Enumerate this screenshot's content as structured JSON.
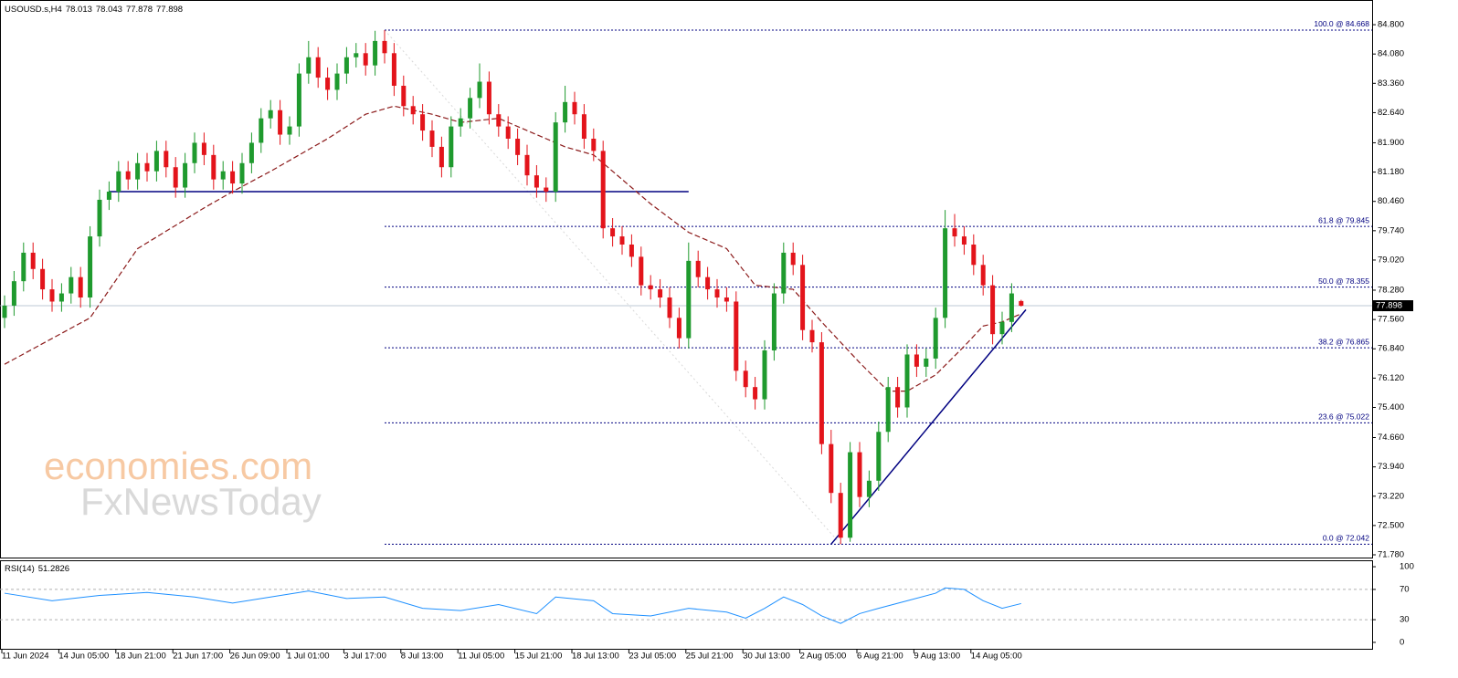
{
  "chart_data": {
    "type": "candlestick",
    "symbol": "USOUSD.s,H4",
    "up_color": "#1f9a2e",
    "down_color": "#e3141b",
    "categories": [
      "11 Jun 2024",
      null,
      null,
      null,
      null,
      null,
      "14 Jun 05:00",
      null,
      null,
      null,
      null,
      null,
      "18 Jun 21:00",
      null,
      null,
      null,
      null,
      null,
      "21 Jun 17:00",
      null,
      null,
      null,
      null,
      null,
      "26 Jun 09:00",
      null,
      null,
      null,
      null,
      null,
      "1 Jul 01:00",
      null,
      null,
      null,
      null,
      null,
      "3 Jul 17:00",
      null,
      null,
      null,
      null,
      null,
      "8 Jul 13:00",
      null,
      null,
      null,
      null,
      null,
      "11 Jul 05:00",
      null,
      null,
      null,
      null,
      null,
      "15 Jul 21:00",
      null,
      null,
      null,
      null,
      null,
      "18 Jul 13:00",
      null,
      null,
      null,
      null,
      null,
      "23 Jul 05:00",
      null,
      null,
      null,
      null,
      null,
      "25 Jul 21:00",
      null,
      null,
      null,
      null,
      null,
      "30 Jul 13:00",
      null,
      null,
      null,
      null,
      null,
      "2 Aug 05:00",
      null,
      null,
      null,
      null,
      null,
      "6 Aug 21:00",
      null,
      null,
      null,
      null,
      null,
      "9 Aug 13:00",
      null,
      null,
      null,
      null,
      null,
      "14 Aug 05:00",
      null,
      null,
      null,
      null,
      null
    ],
    "candles": [
      [
        77.6,
        78.15,
        77.35,
        77.9
      ],
      [
        77.9,
        78.75,
        77.65,
        78.5
      ],
      [
        78.5,
        79.45,
        78.25,
        79.2
      ],
      [
        79.2,
        79.45,
        78.55,
        78.8
      ],
      [
        78.8,
        79.05,
        78.05,
        78.3
      ],
      [
        78.3,
        78.55,
        77.75,
        78.0
      ],
      [
        78.0,
        78.45,
        77.75,
        78.2
      ],
      [
        78.2,
        78.85,
        77.95,
        78.6
      ],
      [
        78.6,
        78.85,
        77.85,
        78.1
      ],
      [
        78.1,
        79.85,
        77.85,
        79.6
      ],
      [
        79.6,
        80.75,
        79.35,
        80.5
      ],
      [
        80.5,
        80.95,
        80.25,
        80.7
      ],
      [
        80.7,
        81.45,
        80.45,
        81.2
      ],
      [
        81.2,
        81.45,
        80.75,
        81.0
      ],
      [
        81.0,
        81.65,
        80.75,
        81.4
      ],
      [
        81.4,
        81.65,
        80.95,
        81.2
      ],
      [
        81.2,
        81.95,
        80.95,
        81.7
      ],
      [
        81.7,
        81.95,
        81.05,
        81.3
      ],
      [
        81.3,
        81.55,
        80.55,
        80.8
      ],
      [
        80.8,
        81.65,
        80.55,
        81.4
      ],
      [
        81.4,
        82.15,
        81.15,
        81.9
      ],
      [
        81.9,
        82.15,
        81.35,
        81.6
      ],
      [
        81.6,
        81.85,
        80.75,
        81.0
      ],
      [
        81.0,
        81.45,
        80.75,
        81.2
      ],
      [
        81.2,
        81.45,
        80.65,
        80.9
      ],
      [
        80.9,
        81.65,
        80.65,
        81.4
      ],
      [
        81.4,
        82.15,
        81.15,
        81.9
      ],
      [
        81.9,
        82.75,
        81.65,
        82.5
      ],
      [
        82.5,
        82.95,
        82.25,
        82.7
      ],
      [
        82.7,
        82.95,
        81.85,
        82.1
      ],
      [
        82.1,
        82.55,
        81.85,
        82.3
      ],
      [
        82.3,
        83.85,
        82.05,
        83.6
      ],
      [
        83.6,
        84.4,
        83.35,
        84.0
      ],
      [
        84.0,
        84.25,
        83.25,
        83.5
      ],
      [
        83.5,
        83.75,
        82.95,
        83.2
      ],
      [
        83.2,
        83.85,
        82.95,
        83.6
      ],
      [
        83.6,
        84.25,
        83.35,
        84.0
      ],
      [
        84.0,
        84.35,
        83.75,
        84.1
      ],
      [
        84.1,
        84.35,
        83.55,
        83.8
      ],
      [
        83.8,
        84.65,
        83.55,
        84.4
      ],
      [
        84.4,
        84.668,
        83.85,
        84.1
      ],
      [
        84.1,
        84.35,
        83.05,
        83.3
      ],
      [
        83.3,
        83.55,
        82.55,
        82.8
      ],
      [
        82.8,
        83.05,
        82.35,
        82.6
      ],
      [
        82.6,
        82.85,
        81.95,
        82.2
      ],
      [
        82.2,
        82.45,
        81.55,
        81.8
      ],
      [
        81.8,
        82.05,
        81.05,
        81.3
      ],
      [
        81.3,
        82.55,
        81.05,
        82.3
      ],
      [
        82.3,
        82.75,
        82.05,
        82.5
      ],
      [
        82.5,
        83.25,
        82.25,
        83.0
      ],
      [
        83.0,
        83.85,
        82.75,
        83.4
      ],
      [
        83.4,
        83.65,
        82.35,
        82.6
      ],
      [
        82.6,
        82.85,
        82.05,
        82.3
      ],
      [
        82.3,
        82.55,
        81.75,
        82.0
      ],
      [
        82.0,
        82.25,
        81.35,
        81.6
      ],
      [
        81.6,
        81.85,
        80.85,
        81.1
      ],
      [
        81.1,
        81.35,
        80.55,
        80.8
      ],
      [
        80.8,
        81.05,
        80.45,
        80.7
      ],
      [
        80.7,
        82.65,
        80.45,
        82.4
      ],
      [
        82.4,
        83.3,
        82.15,
        82.9
      ],
      [
        82.9,
        83.15,
        82.35,
        82.6
      ],
      [
        82.6,
        82.85,
        81.75,
        82.0
      ],
      [
        82.0,
        82.25,
        81.45,
        81.7
      ],
      [
        81.7,
        81.95,
        79.55,
        79.8
      ],
      [
        79.8,
        80.05,
        79.35,
        79.6
      ],
      [
        79.6,
        79.85,
        79.15,
        79.4
      ],
      [
        79.4,
        79.65,
        78.85,
        79.1
      ],
      [
        79.1,
        79.35,
        78.15,
        78.4
      ],
      [
        78.4,
        78.65,
        78.05,
        78.3
      ],
      [
        78.3,
        78.55,
        77.85,
        78.1
      ],
      [
        78.1,
        78.35,
        77.35,
        77.6
      ],
      [
        77.6,
        77.85,
        76.85,
        77.1
      ],
      [
        77.1,
        79.45,
        76.85,
        79.0
      ],
      [
        79.0,
        79.25,
        78.35,
        78.6
      ],
      [
        78.6,
        78.85,
        78.05,
        78.3
      ],
      [
        78.3,
        78.55,
        77.85,
        78.1
      ],
      [
        78.1,
        78.35,
        77.75,
        78.0
      ],
      [
        78.0,
        78.25,
        76.05,
        76.3
      ],
      [
        76.3,
        76.55,
        75.65,
        75.9
      ],
      [
        75.9,
        76.15,
        75.35,
        75.6
      ],
      [
        75.6,
        77.05,
        75.35,
        76.8
      ],
      [
        76.8,
        78.45,
        76.55,
        78.2
      ],
      [
        78.2,
        79.45,
        77.95,
        79.2
      ],
      [
        79.2,
        79.45,
        78.65,
        78.9
      ],
      [
        78.9,
        79.15,
        77.05,
        77.3
      ],
      [
        77.3,
        77.55,
        76.75,
        77.0
      ],
      [
        77.0,
        77.25,
        74.25,
        74.5
      ],
      [
        74.5,
        74.85,
        73.05,
        73.3
      ],
      [
        73.3,
        73.55,
        72.042,
        72.2
      ],
      [
        72.2,
        74.55,
        72.1,
        74.3
      ],
      [
        74.3,
        74.55,
        72.95,
        73.2
      ],
      [
        73.2,
        73.85,
        72.95,
        73.6
      ],
      [
        73.6,
        75.05,
        73.35,
        74.8
      ],
      [
        74.8,
        76.15,
        74.55,
        75.9
      ],
      [
        75.9,
        76.15,
        75.15,
        75.4
      ],
      [
        75.4,
        76.95,
        75.15,
        76.7
      ],
      [
        76.7,
        76.95,
        76.15,
        76.4
      ],
      [
        76.4,
        76.85,
        76.15,
        76.6
      ],
      [
        76.6,
        77.85,
        76.35,
        77.6
      ],
      [
        77.6,
        80.25,
        77.35,
        79.8
      ],
      [
        79.8,
        80.15,
        79.35,
        79.6
      ],
      [
        79.6,
        79.85,
        79.15,
        79.4
      ],
      [
        79.4,
        79.65,
        78.65,
        78.9
      ],
      [
        78.9,
        79.15,
        78.15,
        78.4
      ],
      [
        78.4,
        78.65,
        76.95,
        77.2
      ],
      [
        77.2,
        77.75,
        76.95,
        77.5
      ],
      [
        77.5,
        78.45,
        77.25,
        78.2
      ],
      [
        78.013,
        78.043,
        77.878,
        77.898
      ]
    ],
    "ylim": [
      71.713,
      85.384
    ],
    "yticks": [
      {
        "value": 71.78,
        "label": "71.780"
      },
      {
        "value": 72.5,
        "label": "72.500"
      },
      {
        "value": 73.22,
        "label": "73.220"
      },
      {
        "value": 73.94,
        "label": "73.940"
      },
      {
        "value": 74.66,
        "label": "74.660"
      },
      {
        "value": 75.4,
        "label": "75.400"
      },
      {
        "value": 76.12,
        "label": "76.120"
      },
      {
        "value": 76.84,
        "label": "76.840"
      },
      {
        "value": 77.56,
        "label": "77.560"
      },
      {
        "value": 78.28,
        "label": "78.280"
      },
      {
        "value": 79.02,
        "label": "79.020"
      },
      {
        "value": 79.74,
        "label": "79.740"
      },
      {
        "value": 80.46,
        "label": "80.460"
      },
      {
        "value": 81.18,
        "label": "81.180"
      },
      {
        "value": 81.9,
        "label": "81.900"
      },
      {
        "value": 82.64,
        "label": "82.640"
      },
      {
        "value": 83.36,
        "label": "83.360"
      },
      {
        "value": 84.08,
        "label": "84.080"
      },
      {
        "value": 84.8,
        "label": "84.800"
      }
    ],
    "ma": {
      "color": "#8b1a1a",
      "x": [
        0,
        9,
        14,
        21,
        24,
        28,
        34,
        38,
        41,
        45,
        48,
        52,
        55,
        59,
        62,
        65,
        68,
        72,
        76,
        79,
        83,
        86,
        90,
        93,
        95,
        98,
        101,
        103,
        105,
        107
      ],
      "values": [
        76.46,
        77.6,
        79.3,
        80.3,
        80.7,
        81.2,
        82.0,
        82.6,
        82.8,
        82.6,
        82.4,
        82.5,
        82.2,
        81.8,
        81.6,
        81.0,
        80.4,
        79.7,
        79.3,
        78.4,
        78.3,
        77.5,
        76.5,
        75.8,
        75.8,
        76.2,
        76.9,
        77.4,
        77.5,
        77.7
      ]
    },
    "lines": [
      {
        "color": "#000080",
        "x": [
          11,
          72
        ],
        "y": [
          80.7,
          80.7
        ]
      },
      {
        "color": "#000080",
        "x": [
          87,
          107.5
        ],
        "y": [
          72.042,
          77.8
        ]
      }
    ],
    "fib_color": "#000080",
    "fib_levels": [
      {
        "value": 84.668,
        "label": "100.0 @ 84.668"
      },
      {
        "value": 79.845,
        "label": "61.8 @ 79.845"
      },
      {
        "value": 78.355,
        "label": "50.0 @ 78.355"
      },
      {
        "value": 76.865,
        "label": "38.2 @ 76.865"
      },
      {
        "value": 75.022,
        "label": "23.6 @ 75.022"
      },
      {
        "value": 72.042,
        "label": "0.0 @ 72.042"
      }
    ],
    "rsi": {
      "title": "RSI(14)",
      "color": "#1e90ff",
      "x": [
        0,
        5,
        10,
        15,
        20,
        24,
        28,
        32,
        36,
        40,
        44,
        48,
        52,
        56,
        58,
        62,
        64,
        68,
        72,
        76,
        78,
        80,
        82,
        84,
        86,
        88,
        90,
        92,
        95,
        98,
        99,
        101,
        103,
        105,
        107
      ],
      "values": [
        65,
        55,
        62,
        66,
        60,
        52,
        60,
        68,
        58,
        60,
        45,
        42,
        50,
        38,
        60,
        55,
        38,
        35,
        45,
        40,
        32,
        45,
        60,
        50,
        35,
        25,
        38,
        45,
        55,
        65,
        72,
        70,
        55,
        45,
        51.2826
      ],
      "ylim": [
        -8.5,
        107.3
      ],
      "yticks": [
        100,
        70,
        30,
        0
      ],
      "levels": [
        70,
        30
      ]
    },
    "watermark": [
      "economies.com",
      "FxNewsToday"
    ]
  }
}
